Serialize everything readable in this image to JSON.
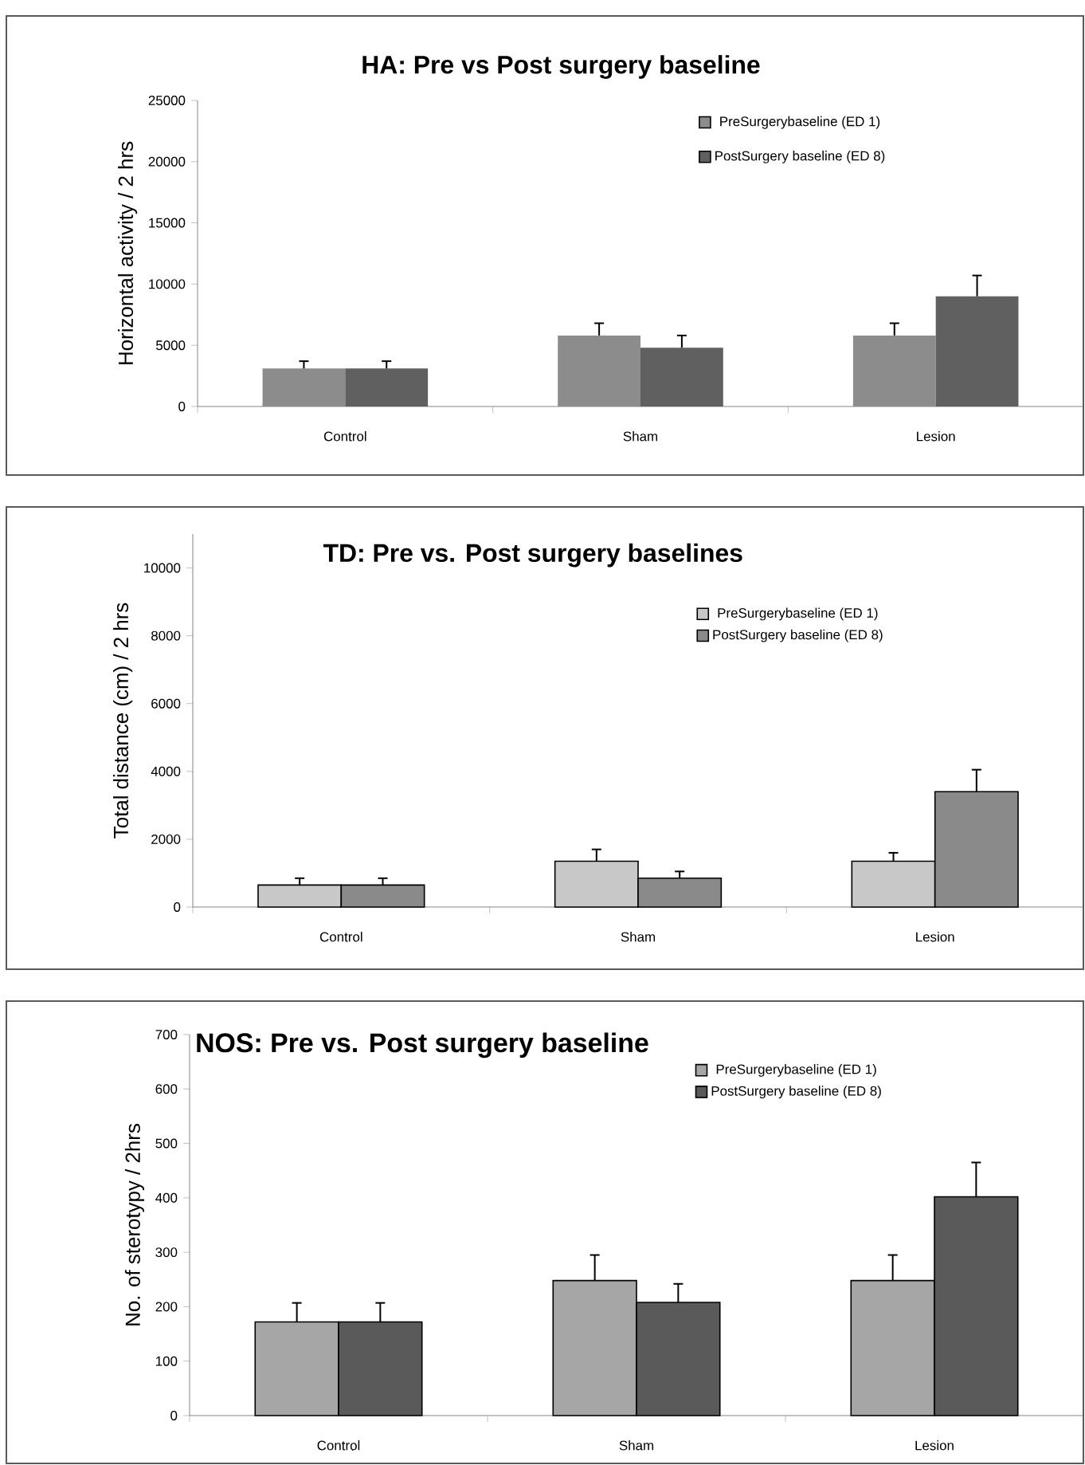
{
  "chart_data": [
    {
      "type": "bar",
      "title": "HA: Pre vs Post surgery baseline",
      "ylabel": "Horizontal activity / 2 hrs",
      "categories": [
        "Control",
        "Sham",
        "Lesion"
      ],
      "series": [
        {
          "name": "PreSurgerybaseline (ED 1)",
          "color": "#8c8c8c",
          "values": [
            3100,
            5800,
            5800
          ],
          "errors": [
            [
              3100,
              3700
            ],
            [
              5800,
              6800
            ],
            [
              5800,
              6800
            ]
          ]
        },
        {
          "name": "PostSurgery baseline (ED 8)",
          "color": "#606060",
          "values": [
            3100,
            4800,
            9000
          ],
          "errors": [
            [
              3100,
              3700
            ],
            [
              4800,
              5800
            ],
            [
              9000,
              10700
            ]
          ]
        }
      ],
      "ylim": [
        0,
        25000
      ],
      "yticks": [
        0,
        5000,
        10000,
        15000,
        20000,
        25000
      ],
      "legend": "top right"
    },
    {
      "type": "bar",
      "title": "TD: Pre vs. Post surgery baselines",
      "ylabel": "Total distance (cm) / 2 hrs",
      "categories": [
        "Control",
        "Sham",
        "Lesion"
      ],
      "series": [
        {
          "name": "PreSurgerybaseline (ED 1)",
          "color": "#c8c8c8",
          "values": [
            650,
            1350,
            1350
          ],
          "errors": [
            [
              650,
              850
            ],
            [
              1350,
              1700
            ],
            [
              1350,
              1600
            ]
          ]
        },
        {
          "name": "PostSurgery baseline (ED 8)",
          "color": "#8a8a8a",
          "values": [
            650,
            850,
            3400
          ],
          "errors": [
            [
              650,
              850
            ],
            [
              850,
              1050
            ],
            [
              3400,
              4050
            ]
          ]
        }
      ],
      "ylim": [
        0,
        11000
      ],
      "yticks": [
        0,
        2000,
        4000,
        6000,
        8000,
        10000
      ],
      "legend": "top right"
    },
    {
      "type": "bar",
      "title": "NOS: Pre vs. Post surgery baseline",
      "ylabel": "No. of sterotypy / 2hrs",
      "categories": [
        "Control",
        "Sham",
        "Lesion"
      ],
      "series": [
        {
          "name": "PreSurgerybaseline (ED 1)",
          "color": "#a6a6a6",
          "values": [
            172,
            248,
            248
          ],
          "errors": [
            [
              172,
              207
            ],
            [
              248,
              295
            ],
            [
              248,
              295
            ]
          ]
        },
        {
          "name": "PostSurgery baseline (ED 8)",
          "color": "#5a5a5a",
          "values": [
            172,
            208,
            402
          ],
          "errors": [
            [
              172,
              207
            ],
            [
              208,
              242
            ],
            [
              402,
              465
            ]
          ]
        }
      ],
      "ylim": [
        0,
        700
      ],
      "yticks": [
        0,
        100,
        200,
        300,
        400,
        500,
        600,
        700
      ],
      "legend": "top right"
    }
  ]
}
